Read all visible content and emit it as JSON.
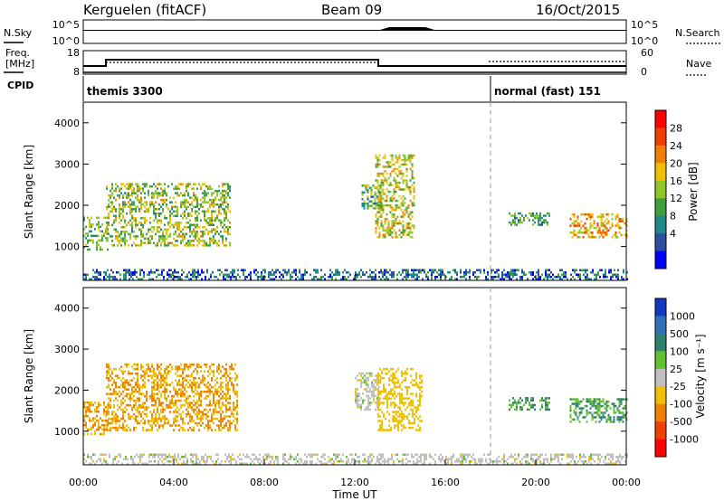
{
  "header": {
    "title": "Kerguelen (fitACF)",
    "beam": "Beam 09",
    "date": "16/Oct/2015"
  },
  "status_panel_1": {
    "left_label": "N.Sky",
    "right_label": "N.Search",
    "left_ticks": [
      "10^5",
      "10^0"
    ],
    "right_ticks": [
      "10^5",
      "10^0"
    ]
  },
  "status_panel_2": {
    "left_label_1": "Freq.",
    "left_label_2": "[MHz]",
    "right_label": "Nave",
    "left_ticks": [
      "18",
      "8"
    ],
    "right_ticks": [
      "60",
      "0"
    ]
  },
  "cpid": {
    "label": "CPID",
    "segments": [
      {
        "name": "themis 3300",
        "start_h": 0.0,
        "end_h": 18.0
      },
      {
        "name": "normal (fast) 151",
        "start_h": 18.0,
        "end_h": 24.0
      }
    ]
  },
  "power_panel": {
    "ylabel": "Slant Range [km]",
    "yticks": [
      "4000",
      "3000",
      "2000",
      "1000"
    ],
    "colorbar_label": "Power [dB]",
    "colorbar_ticks": [
      "28",
      "24",
      "20",
      "16",
      "12",
      "8",
      "4"
    ],
    "colors": [
      "#0000ff",
      "#2e4ea0",
      "#1e8a8a",
      "#40a040",
      "#90c828",
      "#f0c000",
      "#f08000",
      "#f04000",
      "#ff0000"
    ]
  },
  "velocity_panel": {
    "ylabel": "Slant Range [km]",
    "yticks": [
      "4000",
      "3000",
      "2000",
      "1000"
    ],
    "colorbar_label": "Velocity [m s⁻¹]",
    "colorbar_ticks": [
      "1000",
      "500",
      "100",
      "25",
      "-25",
      "-100",
      "-500",
      "-1000"
    ],
    "colors": [
      "#1038c0",
      "#3070b8",
      "#308070",
      "#60c030",
      "#c0c0c0",
      "#f0c000",
      "#f08000",
      "#f04000",
      "#ff0000"
    ]
  },
  "x_axis": {
    "label": "Time UT",
    "ticks": [
      "00:00",
      "04:00",
      "08:00",
      "12:00",
      "16:00",
      "20:00",
      "00:00"
    ]
  },
  "chart_data": {
    "type": "heatmap",
    "title": "Kerguelen (fitACF)",
    "xlabel": "Time UT",
    "ylabel": "Slant Range [km]",
    "xlim_hours": [
      0,
      24
    ],
    "ylim_km": [
      180,
      4500
    ],
    "power_regions_dB": [
      {
        "t0": 0.0,
        "t1": 1.1,
        "r0": 900,
        "r1": 1700,
        "value": 16
      },
      {
        "t0": 1.0,
        "t1": 6.5,
        "r0": 1000,
        "r1": 2500,
        "value": 18
      },
      {
        "t0": 12.3,
        "t1": 13.2,
        "r0": 1900,
        "r1": 2500,
        "value": 14
      },
      {
        "t0": 12.9,
        "t1": 14.6,
        "r0": 1200,
        "r1": 3200,
        "value": 20
      },
      {
        "t0": 18.8,
        "t1": 20.6,
        "r0": 1500,
        "r1": 1800,
        "value": 14
      },
      {
        "t0": 21.5,
        "t1": 24.0,
        "r0": 1200,
        "r1": 1800,
        "value": 24
      },
      {
        "t0": 0.0,
        "t1": 24.0,
        "r0": 180,
        "r1": 450,
        "value": 8
      }
    ],
    "velocity_regions_ms": [
      {
        "t0": 0.0,
        "t1": 1.1,
        "r0": 900,
        "r1": 1700,
        "value": -100
      },
      {
        "t0": 1.0,
        "t1": 6.8,
        "r0": 1000,
        "r1": 2600,
        "value": -100
      },
      {
        "t0": 12.0,
        "t1": 13.2,
        "r0": 1500,
        "r1": 2400,
        "value": 0
      },
      {
        "t0": 13.0,
        "t1": 15.0,
        "r0": 1000,
        "r1": 2500,
        "value": -60
      },
      {
        "t0": 18.8,
        "t1": 20.6,
        "r0": 1500,
        "r1": 1800,
        "value": 100
      },
      {
        "t0": 21.5,
        "t1": 24.0,
        "r0": 1200,
        "r1": 1800,
        "value": 100
      },
      {
        "t0": 0.0,
        "t1": 24.0,
        "r0": 180,
        "r1": 450,
        "value": 0
      }
    ]
  }
}
